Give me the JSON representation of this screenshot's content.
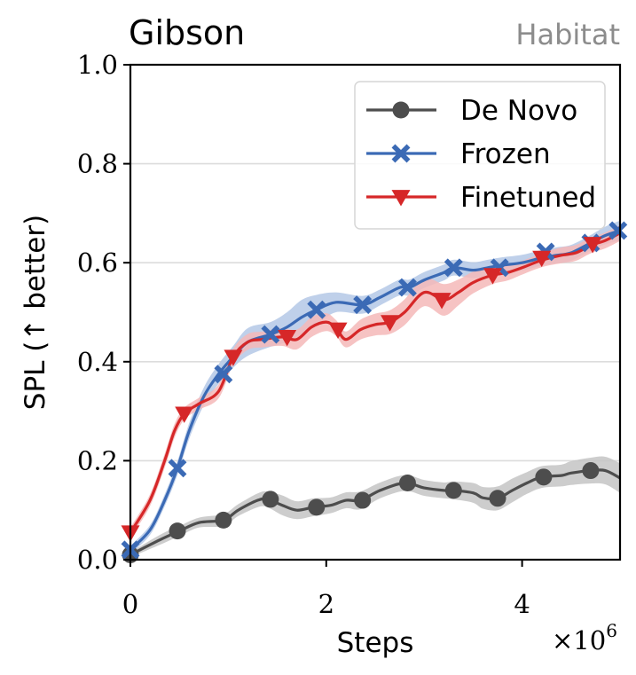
{
  "chart_data": {
    "type": "line",
    "title": "Gibson",
    "subtitle": "Habitat",
    "xlabel": "Steps",
    "ylabel": "SPL (↑ better)",
    "x_multiplier": "×10",
    "x_multiplier_exp": "6",
    "xlim": [
      0,
      5
    ],
    "ylim": [
      0,
      1
    ],
    "xticks": [
      0,
      2,
      4
    ],
    "xtick_labels": [
      "0",
      "2",
      "4"
    ],
    "yticks": [
      0,
      0.2,
      0.4,
      0.6,
      0.8,
      1.0
    ],
    "ytick_labels": [
      "0.0",
      "0.2",
      "0.4",
      "0.6",
      "0.8",
      "1.0"
    ],
    "grid": "horizontal",
    "legend_position": "top-right",
    "series": [
      {
        "name": "De Novo",
        "color": "#4d4d4d",
        "band": "#c4c4c4",
        "marker": "circle",
        "x": [
          0,
          0.3,
          0.5,
          0.7,
          0.95,
          1.1,
          1.3,
          1.4,
          1.55,
          1.7,
          1.87,
          2.05,
          2.2,
          2.35,
          2.55,
          2.8,
          3.0,
          3.2,
          3.3,
          3.5,
          3.6,
          3.75,
          3.9,
          4.05,
          4.2,
          4.4,
          4.5,
          4.7,
          4.85,
          5.0
        ],
        "y": [
          0.01,
          0.04,
          0.058,
          0.075,
          0.08,
          0.1,
          0.12,
          0.122,
          0.11,
          0.1,
          0.106,
          0.11,
          0.12,
          0.12,
          0.14,
          0.155,
          0.145,
          0.14,
          0.14,
          0.135,
          0.125,
          0.124,
          0.14,
          0.155,
          0.167,
          0.17,
          0.175,
          0.18,
          0.18,
          0.165
        ],
        "band_width": [
          0.005,
          0.01,
          0.01,
          0.01,
          0.012,
          0.012,
          0.014,
          0.016,
          0.02,
          0.018,
          0.018,
          0.016,
          0.016,
          0.018,
          0.016,
          0.016,
          0.016,
          0.016,
          0.018,
          0.02,
          0.022,
          0.024,
          0.024,
          0.022,
          0.022,
          0.022,
          0.024,
          0.026,
          0.028,
          0.03
        ],
        "markers": [
          [
            0,
            0.01
          ],
          [
            0.48,
            0.058
          ],
          [
            0.95,
            0.08
          ],
          [
            1.43,
            0.122
          ],
          [
            1.9,
            0.106
          ],
          [
            2.37,
            0.12
          ],
          [
            2.83,
            0.155
          ],
          [
            3.3,
            0.14
          ],
          [
            3.75,
            0.124
          ],
          [
            4.22,
            0.167
          ],
          [
            4.7,
            0.18
          ]
        ]
      },
      {
        "name": "Frozen",
        "color": "#3b6ab5",
        "band": "#b4c8e6",
        "marker": "x",
        "x": [
          0,
          0.2,
          0.35,
          0.48,
          0.6,
          0.75,
          0.9,
          1.05,
          1.2,
          1.43,
          1.6,
          1.75,
          1.9,
          2.1,
          2.37,
          2.55,
          2.75,
          2.85,
          3.0,
          3.2,
          3.3,
          3.5,
          3.65,
          3.8,
          4.0,
          4.2,
          4.35,
          4.5,
          4.7,
          4.85,
          5.0
        ],
        "y": [
          0.02,
          0.06,
          0.12,
          0.185,
          0.26,
          0.33,
          0.375,
          0.41,
          0.44,
          0.455,
          0.47,
          0.49,
          0.505,
          0.52,
          0.515,
          0.53,
          0.55,
          0.55,
          0.565,
          0.58,
          0.59,
          0.585,
          0.59,
          0.595,
          0.6,
          0.61,
          0.615,
          0.62,
          0.64,
          0.655,
          0.665
        ],
        "band_width": [
          0.008,
          0.01,
          0.012,
          0.014,
          0.016,
          0.018,
          0.02,
          0.022,
          0.028,
          0.025,
          0.03,
          0.035,
          0.03,
          0.02,
          0.018,
          0.016,
          0.016,
          0.016,
          0.016,
          0.016,
          0.016,
          0.016,
          0.016,
          0.016,
          0.016,
          0.016,
          0.016,
          0.016,
          0.016,
          0.018,
          0.02
        ],
        "markers": [
          [
            0,
            0.02
          ],
          [
            0.48,
            0.185
          ],
          [
            0.95,
            0.375
          ],
          [
            1.43,
            0.455
          ],
          [
            1.9,
            0.505
          ],
          [
            2.37,
            0.515
          ],
          [
            2.83,
            0.55
          ],
          [
            3.3,
            0.59
          ],
          [
            3.77,
            0.59
          ],
          [
            4.24,
            0.622
          ],
          [
            4.7,
            0.64
          ],
          [
            4.98,
            0.665
          ]
        ]
      },
      {
        "name": "Finetuned",
        "color": "#d62728",
        "band": "#f4b9b9",
        "marker": "triangle-down",
        "x": [
          0,
          0.2,
          0.35,
          0.45,
          0.55,
          0.7,
          0.9,
          1.05,
          1.2,
          1.35,
          1.55,
          1.7,
          1.85,
          2.0,
          2.1,
          2.2,
          2.35,
          2.5,
          2.65,
          2.8,
          3.0,
          3.2,
          3.35,
          3.5,
          3.7,
          3.85,
          4.0,
          4.2,
          4.4,
          4.55,
          4.7,
          4.85,
          5.0
        ],
        "y": [
          0.055,
          0.12,
          0.2,
          0.26,
          0.295,
          0.315,
          0.34,
          0.41,
          0.44,
          0.445,
          0.45,
          0.445,
          0.47,
          0.48,
          0.468,
          0.445,
          0.465,
          0.475,
          0.48,
          0.5,
          0.54,
          0.525,
          0.54,
          0.56,
          0.575,
          0.58,
          0.59,
          0.605,
          0.615,
          0.62,
          0.635,
          0.645,
          0.66
        ],
        "band_width": [
          0.01,
          0.012,
          0.014,
          0.014,
          0.012,
          0.012,
          0.014,
          0.016,
          0.016,
          0.016,
          0.018,
          0.02,
          0.02,
          0.018,
          0.016,
          0.016,
          0.02,
          0.022,
          0.024,
          0.026,
          0.028,
          0.032,
          0.026,
          0.022,
          0.018,
          0.016,
          0.014,
          0.014,
          0.016,
          0.016,
          0.016,
          0.016,
          0.016
        ],
        "markers": [
          [
            0,
            0.055
          ],
          [
            0.55,
            0.295
          ],
          [
            1.05,
            0.41
          ],
          [
            1.6,
            0.45
          ],
          [
            2.12,
            0.465
          ],
          [
            2.65,
            0.48
          ],
          [
            3.18,
            0.525
          ],
          [
            3.7,
            0.575
          ],
          [
            4.2,
            0.61
          ],
          [
            4.72,
            0.638
          ]
        ]
      }
    ]
  }
}
